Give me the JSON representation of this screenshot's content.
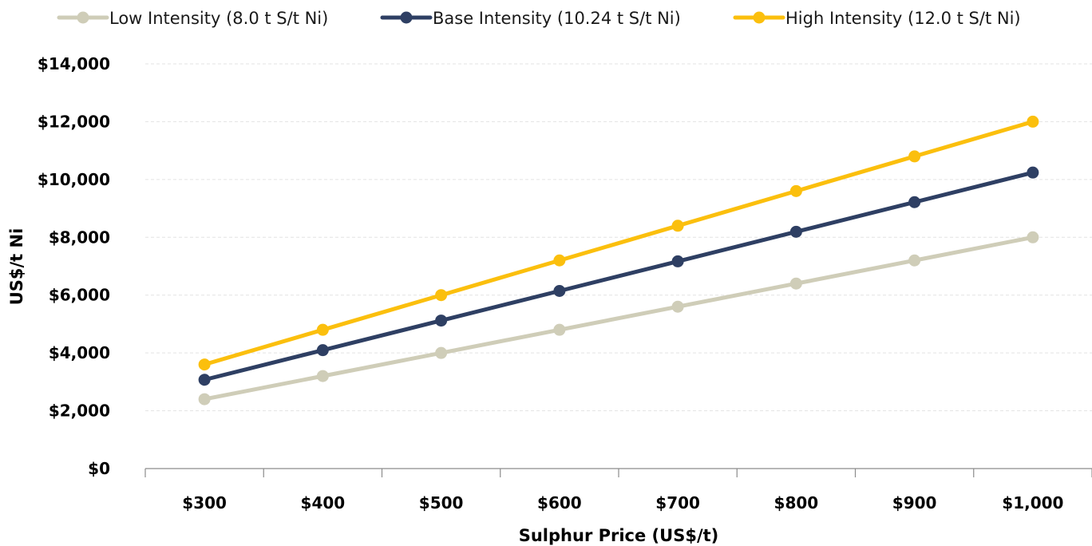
{
  "chart_data": {
    "type": "line",
    "title": "",
    "xlabel": "Sulphur Price (US$/t)",
    "ylabel": "US$/t Ni",
    "categories": [
      "$300",
      "$400",
      "$500",
      "$600",
      "$700",
      "$800",
      "$900",
      "$1,000"
    ],
    "x": [
      300,
      400,
      500,
      600,
      700,
      800,
      900,
      1000
    ],
    "ylim": [
      0,
      14000
    ],
    "yticks": [
      0,
      2000,
      4000,
      6000,
      8000,
      10000,
      12000,
      14000
    ],
    "ytick_labels": [
      "$0",
      "$2,000",
      "$4,000",
      "$6,000",
      "$8,000",
      "$10,000",
      "$12,000",
      "$14,000"
    ],
    "grid": true,
    "legend_position": "top",
    "series": [
      {
        "name": "Low Intensity (8.0 t S/t Ni)",
        "color": "#cfcdb8",
        "values": [
          2400,
          3200,
          4000,
          4800,
          5600,
          6400,
          7200,
          8000
        ]
      },
      {
        "name": "Base Intensity (10.24 t S/t Ni)",
        "color": "#2e3f63",
        "values": [
          3072,
          4096,
          5120,
          6144,
          7168,
          8192,
          9216,
          10240
        ]
      },
      {
        "name": "High Intensity (12.0 t S/t Ni)",
        "color": "#fbbf0d",
        "values": [
          3600,
          4800,
          6000,
          7200,
          8400,
          9600,
          10800,
          12000
        ]
      }
    ]
  }
}
